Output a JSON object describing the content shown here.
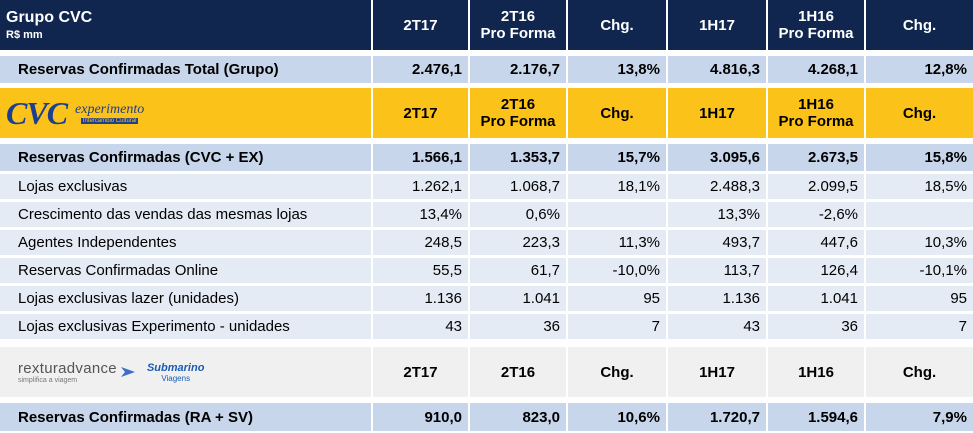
{
  "header": {
    "title": "Grupo CVC",
    "unit": "R$ mm",
    "cols": [
      "2T17",
      "2T16\nPro Forma",
      "Chg.",
      "1H17",
      "1H16\nPro Forma",
      "Chg."
    ]
  },
  "total_row": {
    "label": "Reservas Confirmadas Total (Grupo)",
    "values": [
      "2.476,1",
      "2.176,7",
      "13,8%",
      "4.816,3",
      "4.268,1",
      "12,8%"
    ]
  },
  "cvc_section": {
    "logo_cvc": "CVC",
    "logo_exp": "experimento",
    "logo_exp_tag": "Intercâmbio Cultural",
    "cols": [
      "2T17",
      "2T16\nPro Forma",
      "Chg.",
      "1H17",
      "1H16\nPro Forma",
      "Chg."
    ],
    "rows": [
      {
        "label": "Reservas Confirmadas (CVC + EX)",
        "values": [
          "1.566,1",
          "1.353,7",
          "15,7%",
          "3.095,6",
          "2.673,5",
          "15,8%"
        ]
      },
      {
        "label": "Lojas exclusivas",
        "values": [
          "1.262,1",
          "1.068,7",
          "18,1%",
          "2.488,3",
          "2.099,5",
          "18,5%"
        ]
      },
      {
        "label": "Crescimento das vendas das mesmas lojas",
        "values": [
          "13,4%",
          "0,6%",
          "",
          "13,3%",
          "-2,6%",
          ""
        ]
      },
      {
        "label": "Agentes Independentes",
        "values": [
          "248,5",
          "223,3",
          "11,3%",
          "493,7",
          "447,6",
          "10,3%"
        ]
      },
      {
        "label": "Reservas Confirmadas Online",
        "values": [
          "55,5",
          "61,7",
          "-10,0%",
          "113,7",
          "126,4",
          "-10,1%"
        ]
      },
      {
        "label": "Lojas exclusivas lazer (unidades)",
        "values": [
          "1.136",
          "1.041",
          "95",
          "1.136",
          "1.041",
          "95"
        ]
      },
      {
        "label": "Lojas exclusivas Experimento - unidades",
        "values": [
          "43",
          "36",
          "7",
          "43",
          "36",
          "7"
        ]
      }
    ]
  },
  "ra_section": {
    "logo_rex": "rexturadvance",
    "logo_rex_tag": "simplifica a viagem",
    "logo_sub": "Submarino",
    "logo_sub_tag": "Viagens",
    "cols": [
      "2T17",
      "2T16",
      "Chg.",
      "1H17",
      "1H16",
      "Chg."
    ],
    "rows": [
      {
        "label": "Reservas Confirmadas (RA + SV)",
        "values": [
          "910,0",
          "823,0",
          "10,6%",
          "1.720,7",
          "1.594,6",
          "7,9%"
        ]
      }
    ]
  },
  "colors": {
    "navy": "#11264f",
    "gold": "#fbc21a",
    "blue": "#c7d6ea",
    "light": "#e4ebf5",
    "grey": "#f0f0f0"
  }
}
